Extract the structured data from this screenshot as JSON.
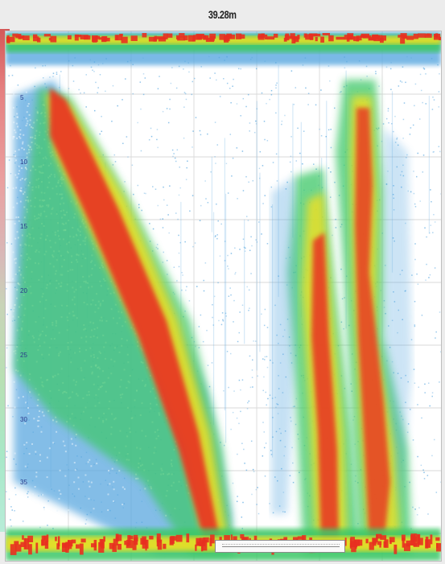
{
  "window": {
    "title": "39.28m"
  },
  "colors": {
    "background": "#ececec",
    "plot_background": "#ffffff",
    "weak_echo": "#5aa8e0",
    "medium_echo": "#3cc868",
    "strong_echo": "#f0e020",
    "very_strong_echo": "#e83020"
  },
  "echogram": {
    "depth_ticks": [
      "5",
      "10",
      "15",
      "20",
      "25",
      "30",
      "35"
    ]
  }
}
